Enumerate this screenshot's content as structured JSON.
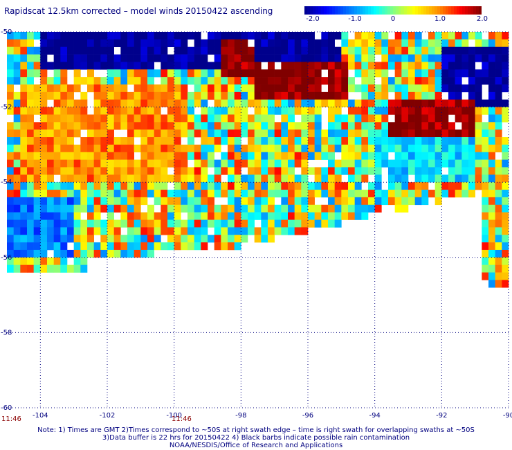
{
  "title": "Rapidscat 12.5km corrected – model winds 20150422 ascending",
  "colorbar": {
    "tick_labels": [
      "-2.0",
      "-1.0",
      "0",
      "1.0",
      "2.0"
    ],
    "tick_values": [
      -2.0,
      -1.0,
      0,
      1.0,
      2.0
    ],
    "min": -2.0,
    "max": 2.0
  },
  "chart_data": {
    "type": "heatmap",
    "title": "Rapidscat 12.5km corrected – model winds 20150422 ascending",
    "xlim": [
      -105,
      -90
    ],
    "ylim": [
      -60,
      -50
    ],
    "x_ticks": [
      -104,
      -102,
      -100,
      -98,
      -96,
      -94,
      -92,
      -90
    ],
    "x_tick_labels": [
      "-104",
      "-102",
      "-100",
      "-98",
      "-96",
      "-94",
      "-92",
      "-90"
    ],
    "y_ticks": [
      -50,
      -52,
      -54,
      -56,
      -58,
      -60
    ],
    "y_tick_labels": [
      "-50",
      "-52",
      "-54",
      "-56",
      "-58",
      "-60"
    ],
    "colorscale_range": [
      -2.0,
      2.0
    ],
    "grid": true,
    "regions": [
      {
        "lon": [
          -98.5,
          -97.5
        ],
        "lat": [
          -51.2,
          -50.3
        ],
        "value": 2.0
      },
      {
        "lon": [
          -97.5,
          -94.8
        ],
        "lat": [
          -51.8,
          -50.8
        ],
        "value": 2.0
      },
      {
        "lon": [
          -93.5,
          -91.0
        ],
        "lat": [
          -52.8,
          -51.8
        ],
        "value": 2.0
      },
      {
        "lon": [
          -104.5,
          -99.5
        ],
        "lat": [
          -54.0,
          -51.5
        ],
        "value": 1.0
      },
      {
        "lon": [
          -105.0,
          -103.0
        ],
        "lat": [
          -56.0,
          -54.5
        ],
        "value": -1.0
      },
      {
        "lon": [
          -104.0,
          -95.0
        ],
        "lat": [
          -51.0,
          -50.0
        ],
        "value": -2.0
      },
      {
        "lon": [
          -92.0,
          -90.0
        ],
        "lat": [
          -52.0,
          -50.5
        ],
        "value": -2.0
      },
      {
        "lon": [
          -94.0,
          -91.0
        ],
        "lat": [
          -54.0,
          -52.8
        ],
        "value": -0.5
      }
    ]
  },
  "time_labels": [
    "11:46",
    "11:46"
  ],
  "notes": [
    "Note: 1) Times are GMT 2)Times correspond to ~50S at right swath edge – time is right swath for overlapping swaths at ~50S",
    "3)Data buffer is 22 hrs for 20150422 4) Black barbs indicate possible rain contamination",
    "NOAA/NESDIS/Office of Research and Applications"
  ]
}
